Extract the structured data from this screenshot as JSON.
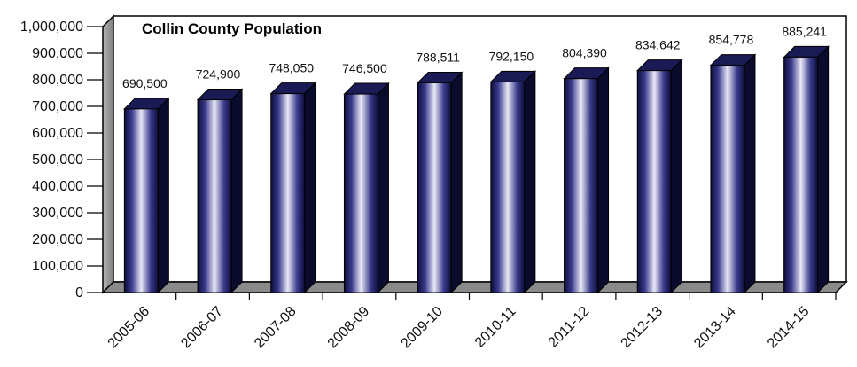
{
  "chart_data": {
    "type": "bar",
    "title": "Collin County Population",
    "xlabel": "",
    "ylabel": "",
    "categories": [
      "2005-06",
      "2006-07",
      "2007-08",
      "2008-09",
      "2009-10",
      "2010-11",
      "2011-12",
      "2012-13",
      "2013-14",
      "2014-15"
    ],
    "values": [
      690500,
      724900,
      748050,
      746500,
      788511,
      792150,
      804390,
      834642,
      854778,
      885241
    ],
    "value_labels": [
      "690,500",
      "724,900",
      "748,050",
      "746,500",
      "788,511",
      "792,150",
      "804,390",
      "834,642",
      "854,778",
      "885,241"
    ],
    "ylim": [
      0,
      1000000
    ],
    "yticks": [
      0,
      100000,
      200000,
      300000,
      400000,
      500000,
      600000,
      700000,
      800000,
      900000,
      1000000
    ],
    "ytick_labels": [
      "0",
      "100,000",
      "200,000",
      "300,000",
      "400,000",
      "500,000",
      "600,000",
      "700,000",
      "800,000",
      "900,000",
      "1,000,000"
    ],
    "grid": false,
    "legend": "none",
    "style": "3d-column",
    "colors": {
      "bar_dark": "#0d0d3a",
      "bar_mid": "#3a3a8c",
      "bar_light": "#e8e8f6",
      "floor": "#8a8a8a",
      "wall_side": "#9a9a9a"
    }
  }
}
